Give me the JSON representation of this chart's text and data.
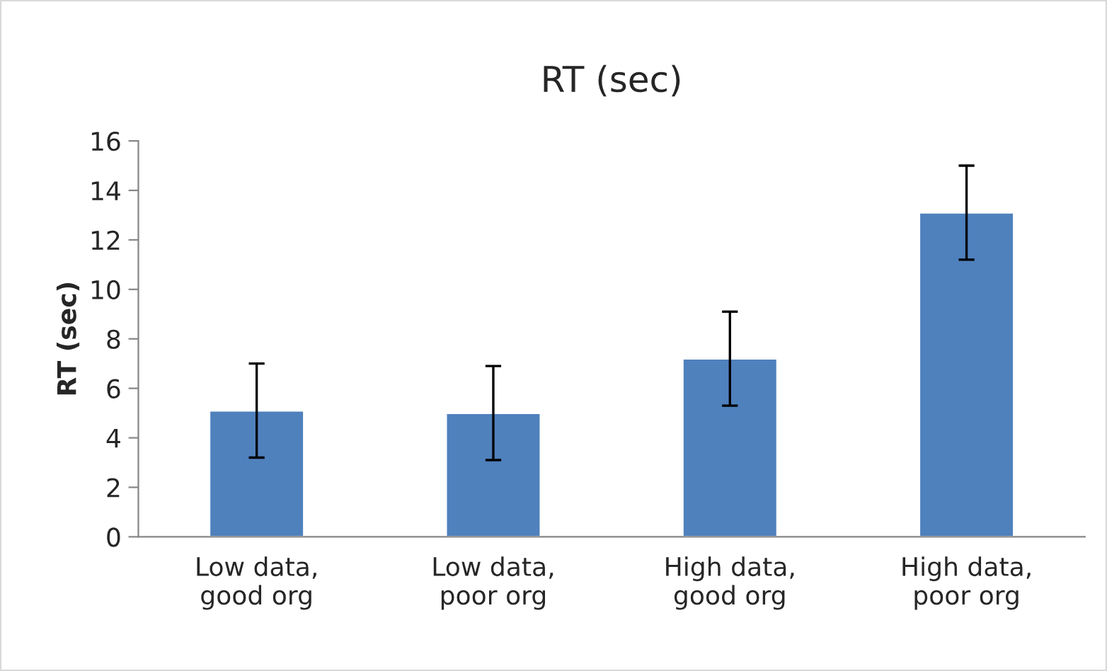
{
  "chart_data": {
    "type": "bar",
    "title": "RT (sec)",
    "ylabel": "RT (sec)",
    "categories": [
      "Low data,\ngood org",
      "Low data,\npoor org",
      "High data,\ngood org",
      "High data,\npoor org"
    ],
    "values": [
      5.1,
      5.0,
      7.2,
      13.1
    ],
    "errors": [
      1.9,
      1.9,
      1.9,
      1.9
    ],
    "color": "#4f81bd",
    "ylim": [
      0,
      16
    ],
    "yticks": [
      0,
      2,
      4,
      6,
      8,
      10,
      12,
      14,
      16
    ],
    "grid": false,
    "legend": false
  }
}
